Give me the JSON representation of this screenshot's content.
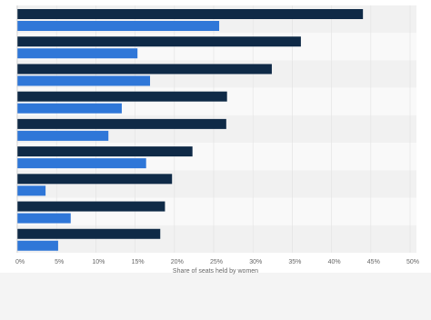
{
  "chart_data": {
    "type": "hbar",
    "xlabel": "Share of seats held by women",
    "categories": [
      null,
      null,
      null,
      null,
      null,
      null,
      null,
      null,
      null
    ],
    "series": [
      {
        "color": "#0f2a47",
        "values": [
          44.0,
          36.1,
          32.4,
          26.7,
          26.6,
          22.3,
          19.7,
          18.8,
          18.2
        ]
      },
      {
        "color": "#2f77d8",
        "values": [
          25.7,
          15.3,
          16.9,
          13.3,
          11.6,
          16.4,
          3.6,
          6.8,
          5.2
        ]
      }
    ],
    "xlim": [
      0,
      50
    ],
    "xticks": [
      {
        "value": 0,
        "label": "0%"
      },
      {
        "value": 5,
        "label": "5%"
      },
      {
        "value": 10,
        "label": "10%"
      },
      {
        "value": 15,
        "label": "15%"
      },
      {
        "value": 20,
        "label": "20%"
      },
      {
        "value": 25,
        "label": "25%"
      },
      {
        "value": 30,
        "label": "30%"
      },
      {
        "value": 35,
        "label": "35%"
      },
      {
        "value": 40,
        "label": "40%"
      },
      {
        "value": 45,
        "label": "45%"
      },
      {
        "value": 50,
        "label": "50%"
      }
    ],
    "grid": true
  }
}
